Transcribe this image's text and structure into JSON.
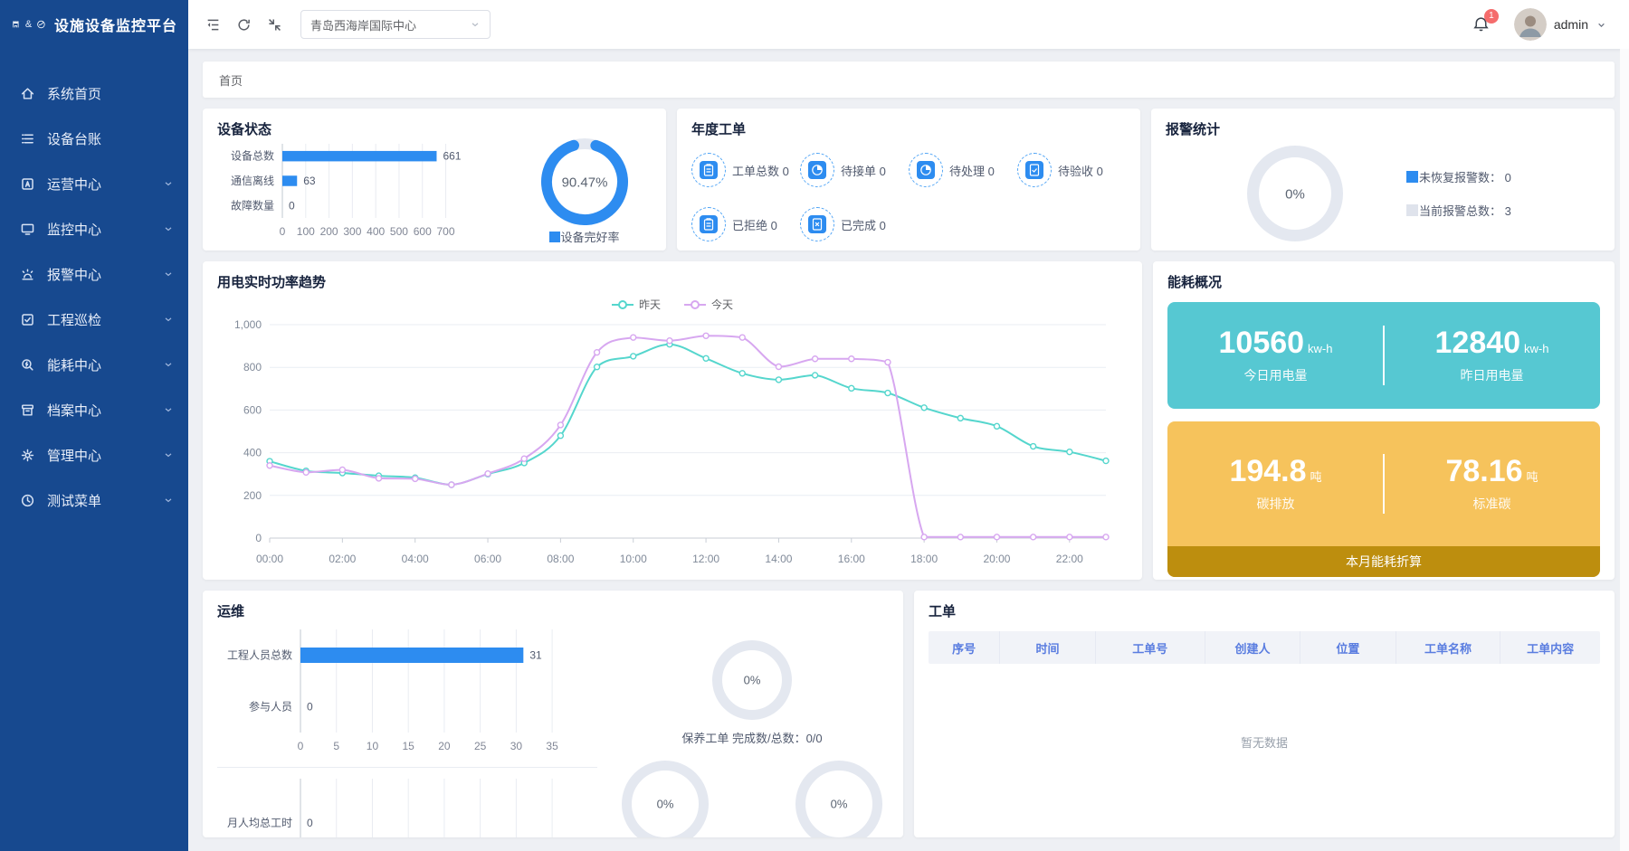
{
  "app": {
    "title": "设施设备监控平台",
    "logo_amp": "&"
  },
  "theme": {
    "accent_blue": "#2d8cf0",
    "sidebar_blue": "#17498f",
    "teal_box": "#56c8d2",
    "yellow_box": "#f6c35c",
    "yellow_footer": "#bd8e0e",
    "donut_track": "#e4e8f0",
    "badge_red": "#f56c6c",
    "table_header_text": "#5a7de0"
  },
  "sidebar": {
    "items": [
      {
        "id": "home",
        "label": "系统首页",
        "icon": "home-icon",
        "chevron": false
      },
      {
        "id": "ledger",
        "label": "设备台账",
        "icon": "ledger-icon",
        "chevron": false
      },
      {
        "id": "operations",
        "label": "运营中心",
        "icon": "operations-icon",
        "chevron": true
      },
      {
        "id": "monitor",
        "label": "监控中心",
        "icon": "monitor-icon",
        "chevron": true
      },
      {
        "id": "alarm",
        "label": "报警中心",
        "icon": "alarm-icon",
        "chevron": true
      },
      {
        "id": "inspection",
        "label": "工程巡检",
        "icon": "inspection-icon",
        "chevron": true
      },
      {
        "id": "energy",
        "label": "能耗中心",
        "icon": "energy-icon",
        "chevron": true
      },
      {
        "id": "archive",
        "label": "档案中心",
        "icon": "archive-icon",
        "chevron": true
      },
      {
        "id": "settings",
        "label": "管理中心",
        "icon": "settings-icon",
        "chevron": true
      },
      {
        "id": "test",
        "label": "测试菜单",
        "icon": "test-icon",
        "chevron": true
      }
    ]
  },
  "header": {
    "project_select": "青岛西海岸国际中心",
    "notification_count": "1",
    "username": "admin"
  },
  "breadcrumb": "首页",
  "cards": {
    "device_status": {
      "title": "设备状态",
      "donut_center": "90.47%",
      "donut_legend": "设备完好率"
    },
    "annual_orders": {
      "title": "年度工单",
      "items": [
        {
          "label": "工单总数",
          "value": "0",
          "icon": "clipboard"
        },
        {
          "label": "待接单",
          "value": "0",
          "icon": "pie"
        },
        {
          "label": "待处理",
          "value": "0",
          "icon": "pie"
        },
        {
          "label": "待验收",
          "value": "0",
          "icon": "doc-check"
        },
        {
          "label": "已拒绝",
          "value": "0",
          "icon": "clipboard"
        },
        {
          "label": "已完成",
          "value": "0",
          "icon": "doc-x"
        }
      ]
    },
    "alarm_stats": {
      "title": "报警统计",
      "donut_center": "0%",
      "legend": [
        {
          "label": "未恢复报警数：",
          "value": "0",
          "color": "#2d8cf0"
        },
        {
          "label": "当前报警总数：",
          "value": "3",
          "color": "#dfe3ec"
        }
      ]
    },
    "power_trend": {
      "title": "用电实时功率趋势"
    },
    "energy": {
      "title": "能耗概况",
      "today_value": "10560",
      "today_unit": "kw-h",
      "today_label": "今日用电量",
      "yesterday_value": "12840",
      "yesterday_unit": "kw-h",
      "yesterday_label": "昨日用电量",
      "carbon_value": "194.8",
      "carbon_unit": "吨",
      "carbon_label": "碳排放",
      "std_value": "78.16",
      "std_unit": "吨",
      "std_label": "标准碳",
      "footer": "本月能耗折算"
    },
    "operations": {
      "title": "运维",
      "donut_caption": "保养工单 完成数/总数：0/0"
    },
    "work_orders": {
      "title": "工单",
      "columns": [
        "序号",
        "时间",
        "工单号",
        "创建人",
        "位置",
        "工单名称",
        "工单内容"
      ],
      "empty_text": "暂无数据"
    }
  },
  "chart_data": [
    {
      "name": "device-status-bar",
      "type": "bar",
      "orientation": "horizontal",
      "categories": [
        "设备总数",
        "通信离线",
        "故障数量"
      ],
      "values": [
        661,
        63,
        0
      ],
      "xticks": [
        0,
        100,
        200,
        300,
        400,
        500,
        600,
        700
      ],
      "xmax": 760,
      "bar_color": "#2d8cf0"
    },
    {
      "name": "device-health-donut",
      "type": "donut",
      "value": 90.47,
      "center_label": "90.47%",
      "legend": [
        "设备完好率"
      ],
      "color": "#2d8cf0",
      "track_color": "#e4e8f0"
    },
    {
      "name": "alarm-donut",
      "type": "donut",
      "value": 0,
      "center_label": "0%",
      "color": "#2d8cf0",
      "track_color": "#e4e8f0"
    },
    {
      "name": "power-trend-line",
      "type": "line",
      "title": "用电实时功率趋势",
      "x": [
        "00:00",
        "01:00",
        "02:00",
        "03:00",
        "04:00",
        "05:00",
        "06:00",
        "07:00",
        "08:00",
        "09:00",
        "10:00",
        "11:00",
        "12:00",
        "13:00",
        "14:00",
        "15:00",
        "16:00",
        "17:00",
        "18:00",
        "19:00",
        "20:00",
        "21:00",
        "22:00",
        "23:00"
      ],
      "x_label_every": 2,
      "ylim": [
        0,
        1000
      ],
      "yticks": [
        0,
        200,
        400,
        600,
        800,
        1000
      ],
      "grid": true,
      "legend_position": "top",
      "series": [
        {
          "name": "昨天",
          "color": "#55d6cd",
          "values": [
            360,
            315,
            305,
            292,
            283,
            250,
            300,
            352,
            480,
            802,
            852,
            908,
            842,
            772,
            742,
            763,
            702,
            680,
            611,
            562,
            524,
            430,
            404,
            362
          ]
        },
        {
          "name": "今天",
          "color": "#d7a7f0",
          "values": [
            340,
            308,
            320,
            280,
            278,
            250,
            302,
            372,
            530,
            870,
            940,
            925,
            948,
            940,
            803,
            840,
            840,
            824,
            5,
            5,
            5,
            5,
            5,
            5
          ]
        }
      ]
    },
    {
      "name": "staff-bar",
      "type": "bar",
      "orientation": "horizontal",
      "categories": [
        "工程人员总数",
        "参与人员"
      ],
      "values": [
        31,
        0
      ],
      "xticks": [
        0,
        5,
        10,
        15,
        20,
        25,
        30,
        35
      ],
      "xmax": 37,
      "bar_color": "#2d8cf0"
    },
    {
      "name": "hours-bar",
      "type": "bar",
      "orientation": "horizontal",
      "categories": [
        "月人均总工时"
      ],
      "values": [
        0
      ],
      "xticks": [
        0,
        5,
        10,
        15,
        20,
        25,
        30,
        35
      ],
      "xmax": 37,
      "show_tick_labels": false,
      "bar_color": "#2d8cf0"
    },
    {
      "name": "maintenance-donut",
      "type": "donut",
      "value": 0,
      "center_label": "0%",
      "track_color": "#e4e8f0"
    },
    {
      "name": "bottom-donut-1",
      "type": "donut",
      "value": 0,
      "center_label": "0%",
      "track_color": "#e4e8f0"
    },
    {
      "name": "bottom-donut-2",
      "type": "donut",
      "value": 0,
      "center_label": "0%",
      "track_color": "#e4e8f0"
    }
  ]
}
